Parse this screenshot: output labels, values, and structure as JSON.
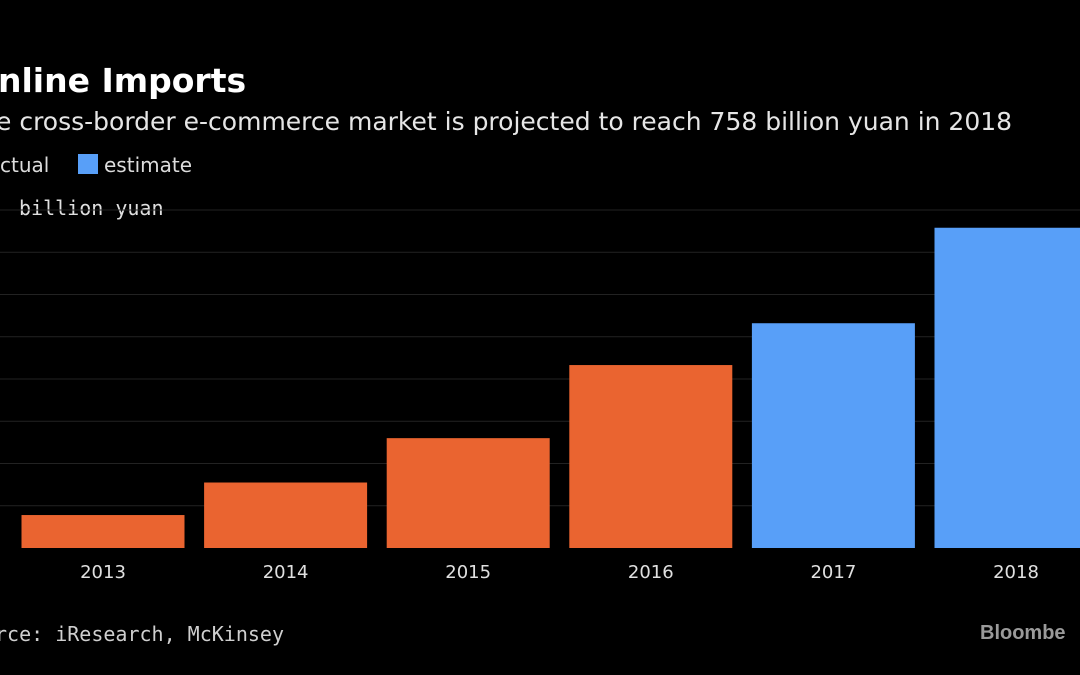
{
  "header": {
    "title": "nline Imports",
    "subtitle": "e cross-border e-commerce market is projected to reach 758 billion yuan in 2018"
  },
  "legend": {
    "actual_label": "ctual",
    "estimate_label": "estimate"
  },
  "unit_label": "billion yuan",
  "footer": {
    "source": "rce: iResearch, McKinsey",
    "brand": "Bloombe"
  },
  "colors": {
    "actual": "#ea6430",
    "estimate": "#589ff8",
    "gridline": "#222222",
    "background": "#000000"
  },
  "chart_data": {
    "type": "bar",
    "categories": [
      "2013",
      "2014",
      "2015",
      "2016",
      "2017",
      "2018"
    ],
    "values": [
      78,
      155,
      260,
      433,
      532,
      758
    ],
    "series_type": [
      "actual",
      "actual",
      "actual",
      "actual",
      "estimate",
      "estimate"
    ],
    "ylim": [
      0,
      800
    ],
    "grid": true,
    "legend_position": "top-left"
  }
}
